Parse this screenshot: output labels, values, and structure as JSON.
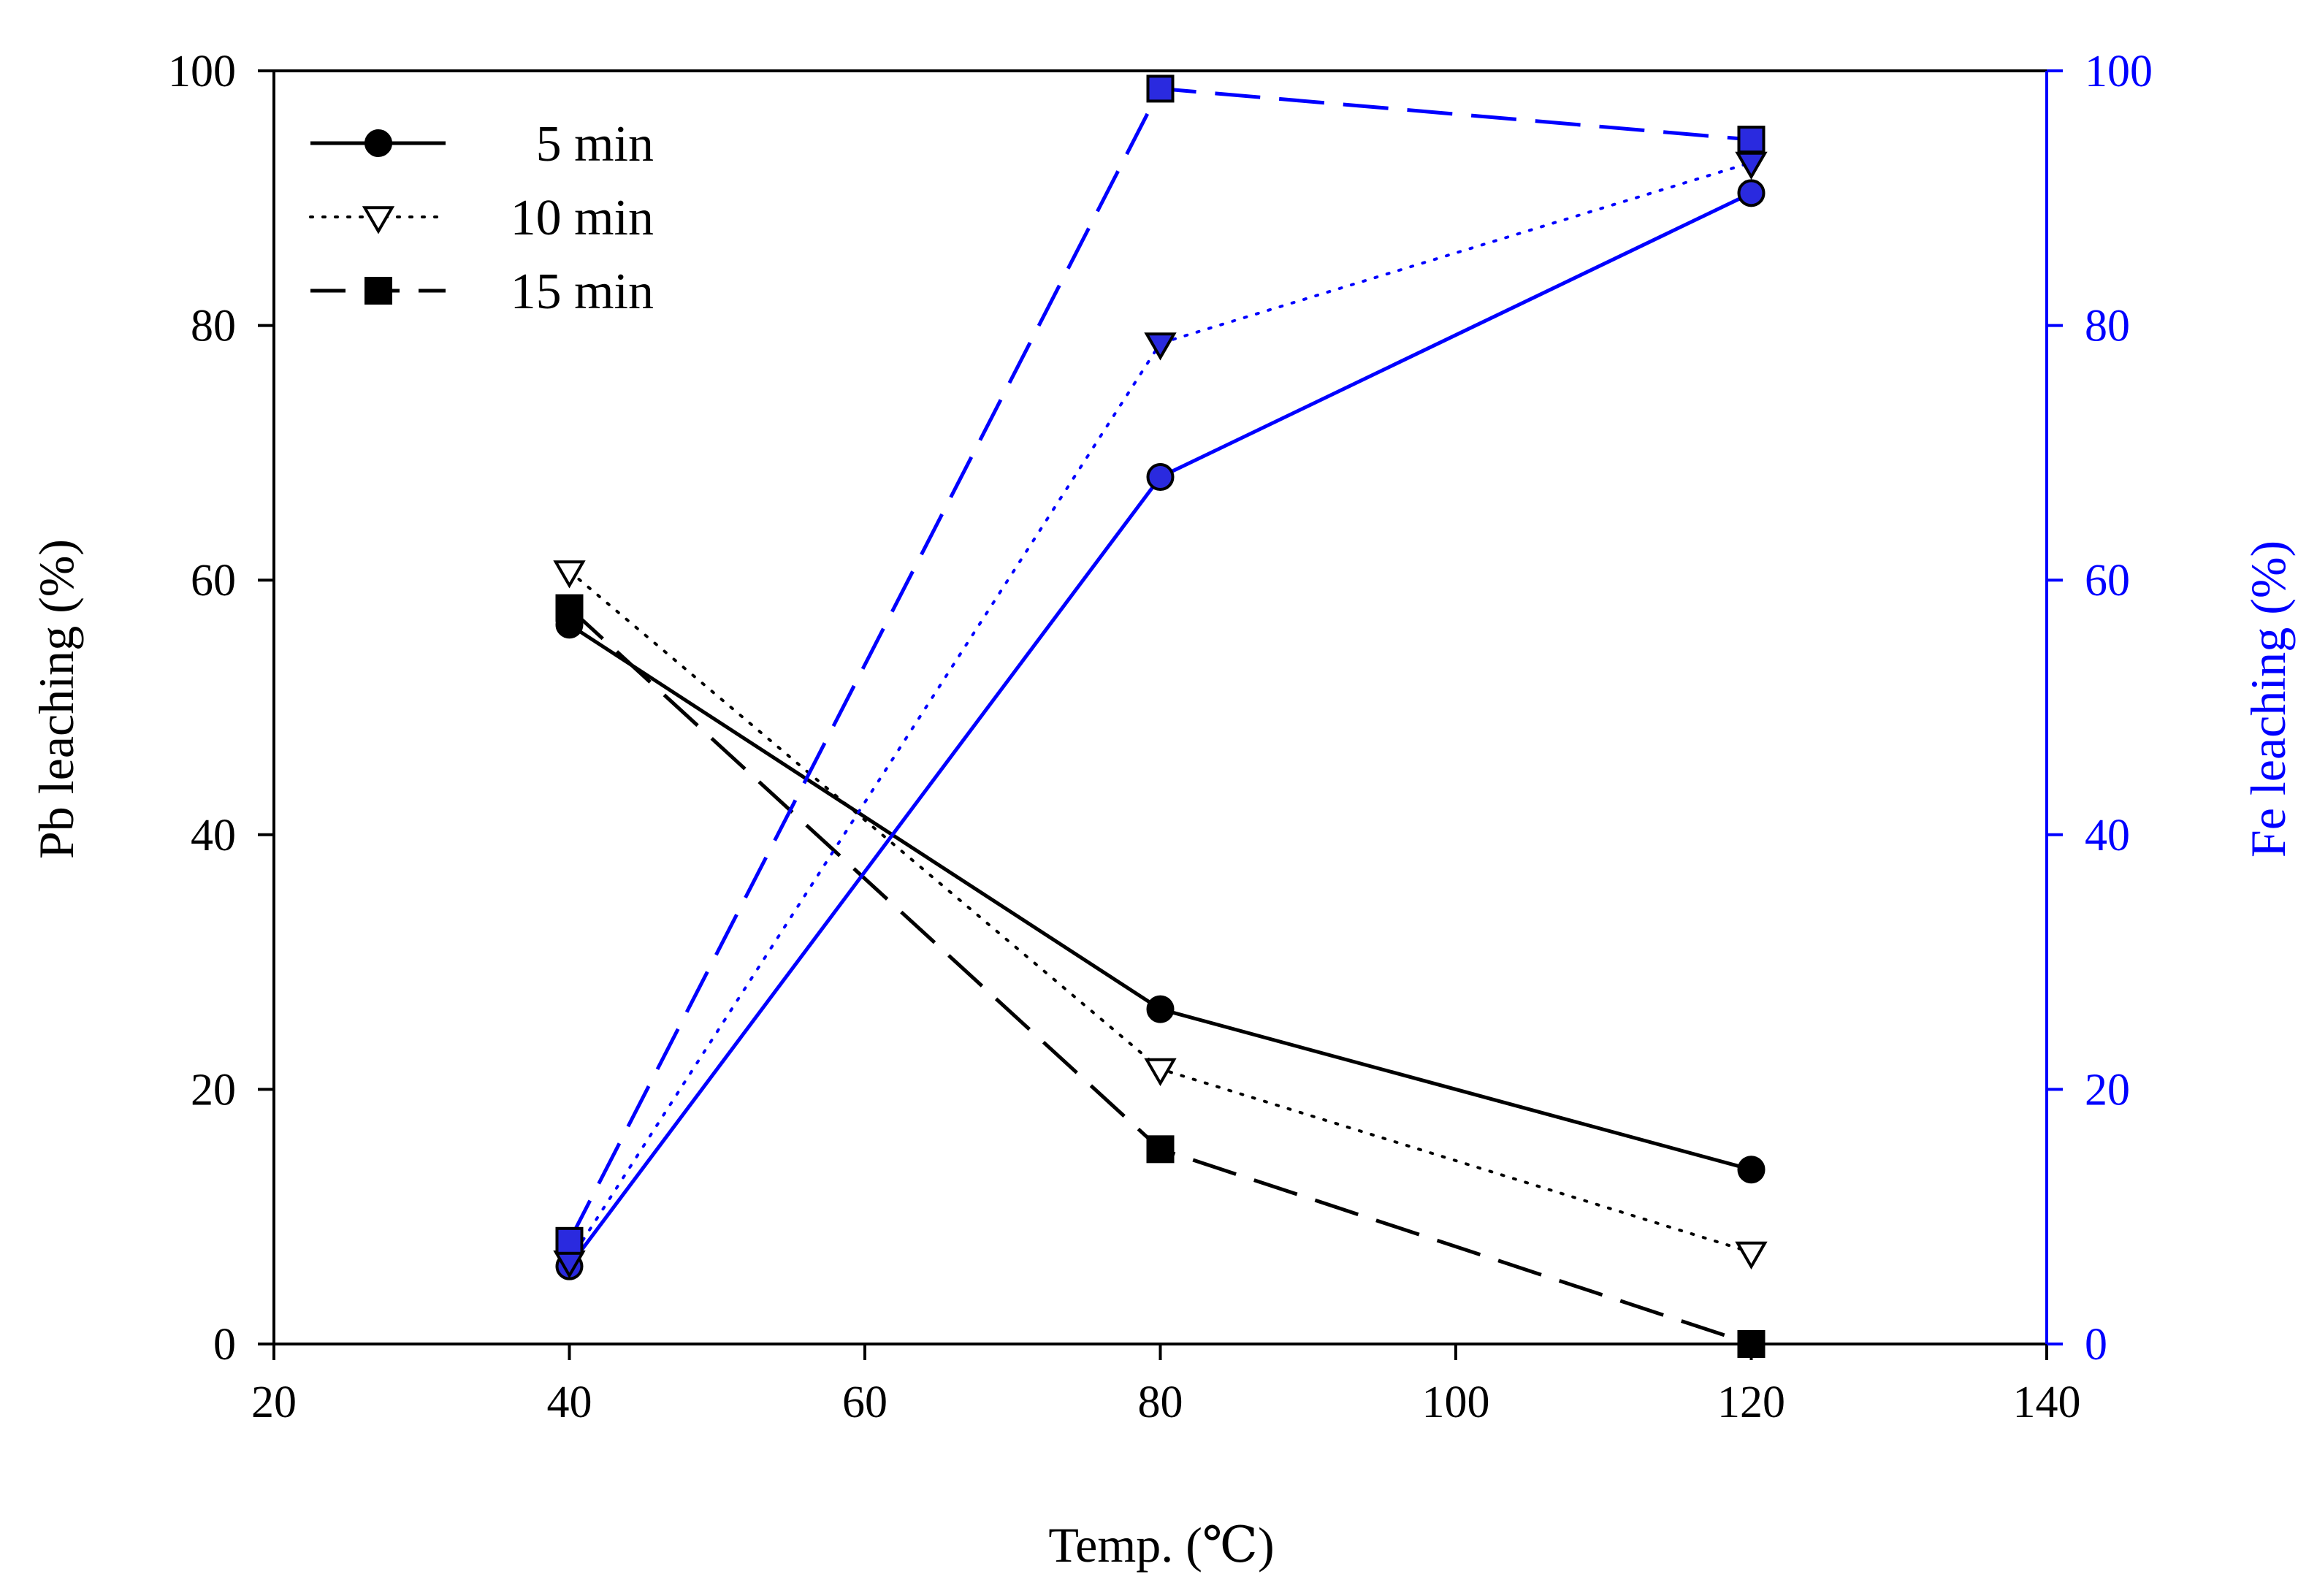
{
  "chart_data": {
    "type": "line",
    "xlabel": "Temp. (℃)",
    "ylabel_left": "Pb leaching (%)",
    "ylabel_right": "Fe leaching (%)",
    "xlim": [
      20,
      140
    ],
    "ylim_left": [
      0,
      100
    ],
    "ylim_right": [
      0,
      100
    ],
    "x_ticks": [
      "20",
      "40",
      "60",
      "80",
      "100",
      "120",
      "140"
    ],
    "y_ticks_left": [
      "0",
      "20",
      "40",
      "60",
      "80",
      "100"
    ],
    "y_ticks_right": [
      "0",
      "20",
      "40",
      "60",
      "80",
      "100"
    ],
    "grid": false,
    "legend_position": "top-left",
    "legend": [
      {
        "label": "5 min",
        "marker": "circle",
        "line": "solid"
      },
      {
        "label": "10 min",
        "marker": "triangle-down",
        "line": "dotted"
      },
      {
        "label": "15 min",
        "marker": "square",
        "line": "dashed"
      }
    ],
    "colors": {
      "pb": "#000000",
      "fe": "#0000ff",
      "fe_marker_fill": "#2a2adf"
    },
    "series": [
      {
        "axis": "left",
        "element": "Pb",
        "time": "5 min",
        "x": [
          40,
          80,
          120
        ],
        "y": [
          56.5,
          26.3,
          13.7
        ]
      },
      {
        "axis": "left",
        "element": "Pb",
        "time": "10 min",
        "x": [
          40,
          80,
          120
        ],
        "y": [
          60.7,
          21.6,
          7.2
        ]
      },
      {
        "axis": "left",
        "element": "Pb",
        "time": "15 min",
        "x": [
          40,
          80,
          120
        ],
        "y": [
          57.8,
          15.3,
          0
        ]
      },
      {
        "axis": "right",
        "element": "Fe",
        "time": "5 min",
        "x": [
          40,
          80,
          120
        ],
        "y": [
          6.1,
          68.1,
          90.4
        ]
      },
      {
        "axis": "right",
        "element": "Fe",
        "time": "10 min",
        "x": [
          40,
          80,
          120
        ],
        "y": [
          6.5,
          78.6,
          92.8
        ]
      },
      {
        "axis": "right",
        "element": "Fe",
        "time": "15 min",
        "x": [
          40,
          80,
          120
        ],
        "y": [
          8.1,
          98.6,
          94.6
        ]
      }
    ]
  }
}
